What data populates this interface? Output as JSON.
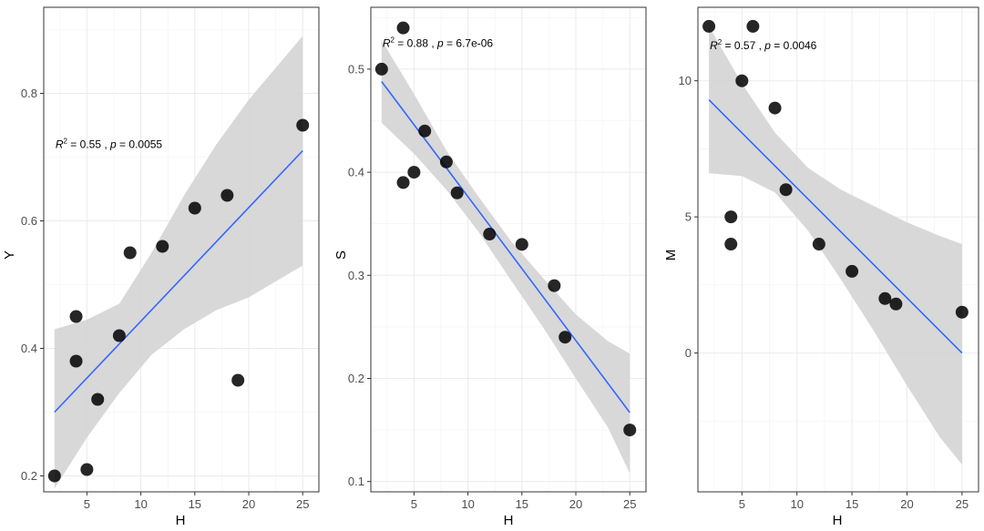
{
  "chart_data": [
    {
      "type": "scatter",
      "xlabel": "H",
      "ylabel": "Y",
      "xlim": [
        1,
        26.5
      ],
      "ylim": [
        0.175,
        0.935
      ],
      "xticks": [
        5,
        10,
        15,
        20,
        25
      ],
      "xtick_labels": [
        "5",
        "10",
        "15",
        "20",
        "25"
      ],
      "yticks": [
        0.2,
        0.4,
        0.6,
        0.8
      ],
      "ytick_labels": [
        "0.2",
        "0.4",
        "0.6",
        "0.8"
      ],
      "points": [
        {
          "x": 2,
          "y": 0.2
        },
        {
          "x": 4,
          "y": 0.45
        },
        {
          "x": 4,
          "y": 0.38
        },
        {
          "x": 5,
          "y": 0.21
        },
        {
          "x": 6,
          "y": 0.32
        },
        {
          "x": 8,
          "y": 0.42
        },
        {
          "x": 9,
          "y": 0.55
        },
        {
          "x": 12,
          "y": 0.56
        },
        {
          "x": 15,
          "y": 0.62
        },
        {
          "x": 18,
          "y": 0.64
        },
        {
          "x": 19,
          "y": 0.35
        },
        {
          "x": 25,
          "y": 0.75
        }
      ],
      "fit_line": {
        "x": [
          2,
          25
        ],
        "y": [
          0.3,
          0.71
        ]
      },
      "ci_band": [
        {
          "x": 2,
          "lo": 0.18,
          "hi": 0.43
        },
        {
          "x": 5,
          "lo": 0.26,
          "hi": 0.445
        },
        {
          "x": 8,
          "lo": 0.33,
          "hi": 0.47
        },
        {
          "x": 11,
          "lo": 0.39,
          "hi": 0.55
        },
        {
          "x": 14,
          "lo": 0.43,
          "hi": 0.64
        },
        {
          "x": 17,
          "lo": 0.46,
          "hi": 0.72
        },
        {
          "x": 20,
          "lo": 0.48,
          "hi": 0.79
        },
        {
          "x": 23,
          "lo": 0.51,
          "hi": 0.85
        },
        {
          "x": 25,
          "lo": 0.53,
          "hi": 0.89
        }
      ],
      "annotation": {
        "r2_value": "0.55",
        "p_value": "0.0055",
        "x": 2,
        "y": 0.72
      },
      "colors": {
        "points": "#000000",
        "line": "#3366ff",
        "band": "#d4d4d4"
      }
    },
    {
      "type": "scatter",
      "xlabel": "H",
      "ylabel": "S",
      "xlim": [
        1,
        26.5
      ],
      "ylim": [
        0.09,
        0.56
      ],
      "xticks": [
        5,
        10,
        15,
        20,
        25
      ],
      "xtick_labels": [
        "5",
        "10",
        "15",
        "20",
        "25"
      ],
      "yticks": [
        0.1,
        0.2,
        0.3,
        0.4,
        0.5
      ],
      "ytick_labels": [
        "0.1",
        "0.2",
        "0.3",
        "0.4",
        "0.5"
      ],
      "points": [
        {
          "x": 2,
          "y": 0.5
        },
        {
          "x": 4,
          "y": 0.54
        },
        {
          "x": 4,
          "y": 0.39
        },
        {
          "x": 5,
          "y": 0.4
        },
        {
          "x": 6,
          "y": 0.44
        },
        {
          "x": 8,
          "y": 0.41
        },
        {
          "x": 9,
          "y": 0.38
        },
        {
          "x": 12,
          "y": 0.34
        },
        {
          "x": 15,
          "y": 0.33
        },
        {
          "x": 18,
          "y": 0.29
        },
        {
          "x": 19,
          "y": 0.24
        },
        {
          "x": 25,
          "y": 0.15
        }
      ],
      "fit_line": {
        "x": [
          2,
          25
        ],
        "y": [
          0.488,
          0.167
        ]
      },
      "ci_band": [
        {
          "x": 2,
          "lo": 0.448,
          "hi": 0.528
        },
        {
          "x": 5,
          "lo": 0.418,
          "hi": 0.476
        },
        {
          "x": 8,
          "lo": 0.383,
          "hi": 0.421
        },
        {
          "x": 11,
          "lo": 0.342,
          "hi": 0.376
        },
        {
          "x": 14,
          "lo": 0.295,
          "hi": 0.333
        },
        {
          "x": 17,
          "lo": 0.249,
          "hi": 0.297
        },
        {
          "x": 20,
          "lo": 0.2,
          "hi": 0.262
        },
        {
          "x": 23,
          "lo": 0.152,
          "hi": 0.236
        },
        {
          "x": 25,
          "lo": 0.108,
          "hi": 0.224
        }
      ],
      "annotation": {
        "r2_value": "0.88",
        "p_value": "6.7e-06",
        "x": 2,
        "y": 0.525
      },
      "colors": {
        "points": "#000000",
        "line": "#3366ff",
        "band": "#d4d4d4"
      }
    },
    {
      "type": "scatter",
      "xlabel": "H",
      "ylabel": "M",
      "xlim": [
        1,
        26.5
      ],
      "ylim": [
        -5.1,
        12.7
      ],
      "xticks": [
        5,
        10,
        15,
        20,
        25
      ],
      "xtick_labels": [
        "5",
        "10",
        "15",
        "20",
        "25"
      ],
      "yticks": [
        0,
        5,
        10
      ],
      "ytick_labels": [
        "0",
        "5",
        "10"
      ],
      "points": [
        {
          "x": 2,
          "y": 12
        },
        {
          "x": 6,
          "y": 12
        },
        {
          "x": 5,
          "y": 10
        },
        {
          "x": 8,
          "y": 9
        },
        {
          "x": 9,
          "y": 6
        },
        {
          "x": 4,
          "y": 5
        },
        {
          "x": 4,
          "y": 4
        },
        {
          "x": 12,
          "y": 4
        },
        {
          "x": 15,
          "y": 3
        },
        {
          "x": 18,
          "y": 2
        },
        {
          "x": 19,
          "y": 1.8
        },
        {
          "x": 25,
          "y": 1.5
        }
      ],
      "fit_line": {
        "x": [
          2,
          25
        ],
        "y": [
          9.3,
          0.0
        ]
      },
      "ci_band": [
        {
          "x": 2,
          "lo": 6.6,
          "hi": 12.0
        },
        {
          "x": 5,
          "lo": 6.5,
          "hi": 9.9
        },
        {
          "x": 8,
          "lo": 5.9,
          "hi": 8.1
        },
        {
          "x": 11,
          "lo": 4.5,
          "hi": 6.8
        },
        {
          "x": 14,
          "lo": 2.7,
          "hi": 6.0
        },
        {
          "x": 17,
          "lo": 0.8,
          "hi": 5.4
        },
        {
          "x": 20,
          "lo": -1.2,
          "hi": 4.8
        },
        {
          "x": 23,
          "lo": -3.1,
          "hi": 4.3
        },
        {
          "x": 25,
          "lo": -4.1,
          "hi": 4.0
        }
      ],
      "annotation": {
        "r2_value": "0.57",
        "p_value": "0.0046",
        "x": 2,
        "y": 11.3
      },
      "colors": {
        "points": "#000000",
        "line": "#3366ff",
        "band": "#d4d4d4"
      }
    }
  ]
}
